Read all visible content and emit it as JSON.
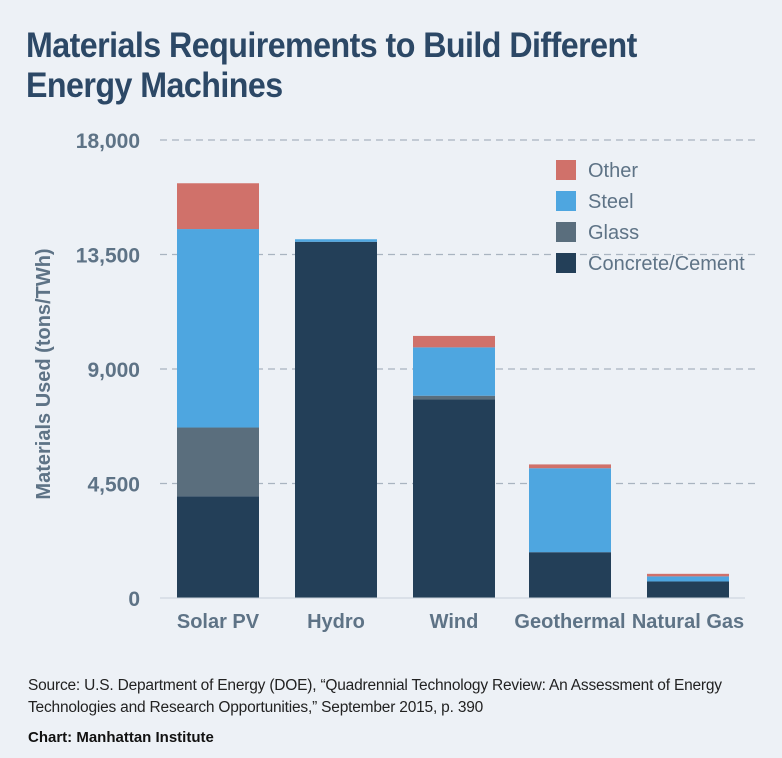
{
  "title": "Materials Requirements to Build Different Energy Machines",
  "chart_data": {
    "type": "bar",
    "stacked": true,
    "categories": [
      "Solar PV",
      "Hydro",
      "Wind",
      "Geothermal",
      "Natural Gas"
    ],
    "series": [
      {
        "name": "Concrete/Cement",
        "color": "#233f58",
        "values": [
          4000,
          14000,
          7800,
          1800,
          650
        ]
      },
      {
        "name": "Glass",
        "color": "#5a6e7d",
        "values": [
          2700,
          0,
          150,
          0,
          0
        ]
      },
      {
        "name": "Steel",
        "color": "#4ea6e0",
        "values": [
          7800,
          100,
          1900,
          3300,
          200
        ]
      },
      {
        "name": "Other",
        "color": "#d0716a",
        "values": [
          1800,
          0,
          450,
          150,
          100
        ]
      }
    ],
    "ylabel": "Materials Used (tons/TWh)",
    "xlabel": "",
    "ylim": [
      0,
      18000
    ],
    "yticks": [
      0,
      4500,
      9000,
      13500,
      18000
    ],
    "ytick_labels": [
      "0",
      "4,500",
      "9,000",
      "13,500",
      "18,000"
    ],
    "grid": true,
    "legend_position": "top-right",
    "legend_order": [
      "Other",
      "Steel",
      "Glass",
      "Concrete/Cement"
    ]
  },
  "source": "Source: U.S. Department of Energy (DOE), “Quadrennial Technology Review: An Assessment of Energy Technologies and Research Opportunities,” September 2015, p. 390",
  "credit": "Chart: Manhattan Institute"
}
